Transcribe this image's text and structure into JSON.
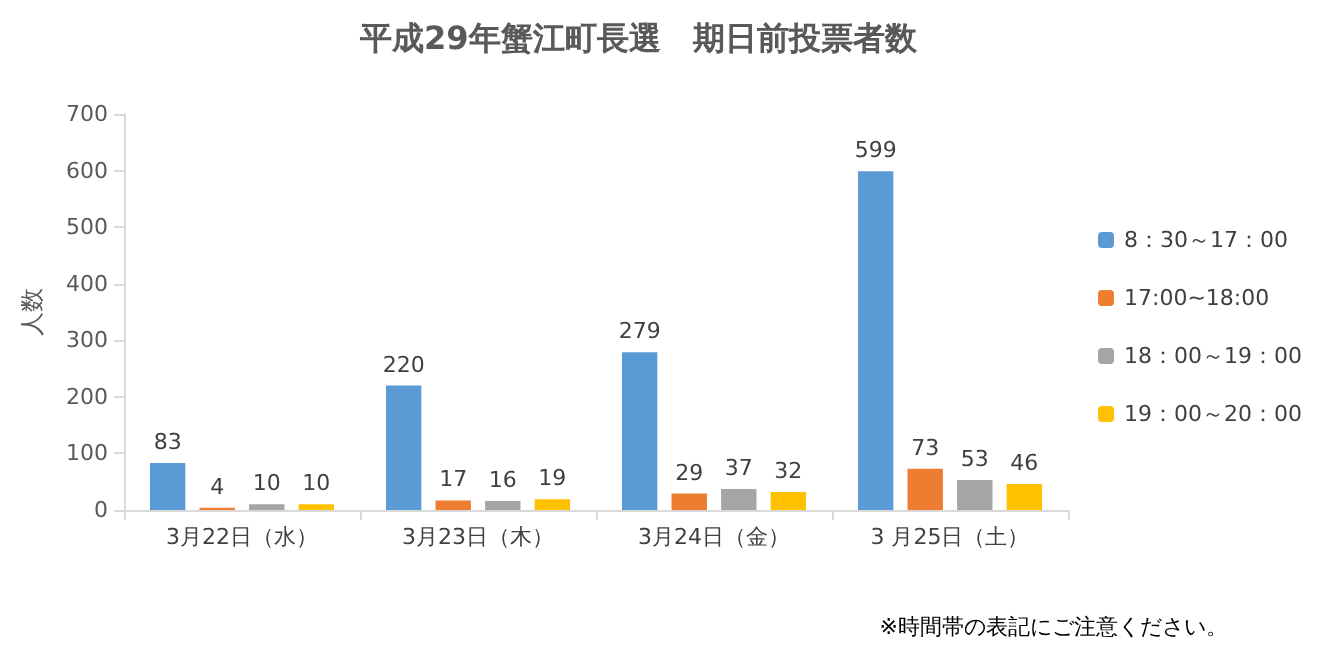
{
  "chart_data": {
    "type": "bar",
    "title": "平成29年蟹江町長選　期日前投票者数",
    "ylabel": "人数",
    "categories": [
      "3月22日（水）",
      "3月23日（木）",
      "3月24日（金）",
      "3 月25日（土）"
    ],
    "series": [
      {
        "name": "8：30～17：00",
        "color": "#5b9bd5",
        "values": [
          83,
          220,
          279,
          599
        ]
      },
      {
        "name": "17:00~18:00",
        "color": "#ed7d31",
        "values": [
          4,
          17,
          29,
          73
        ]
      },
      {
        "name": "18：00～19：00",
        "color": "#a5a5a5",
        "values": [
          10,
          16,
          37,
          53
        ]
      },
      {
        "name": "19：00～20：00",
        "color": "#ffc000",
        "values": [
          10,
          19,
          32,
          46
        ]
      }
    ],
    "ylim": [
      0,
      700
    ],
    "yticks": [
      0,
      100,
      200,
      300,
      400,
      500,
      600,
      700
    ],
    "grid": false,
    "legend": "right",
    "data_labels": true,
    "annotations": [
      "※時間帯の表記にご注意ください。"
    ]
  }
}
